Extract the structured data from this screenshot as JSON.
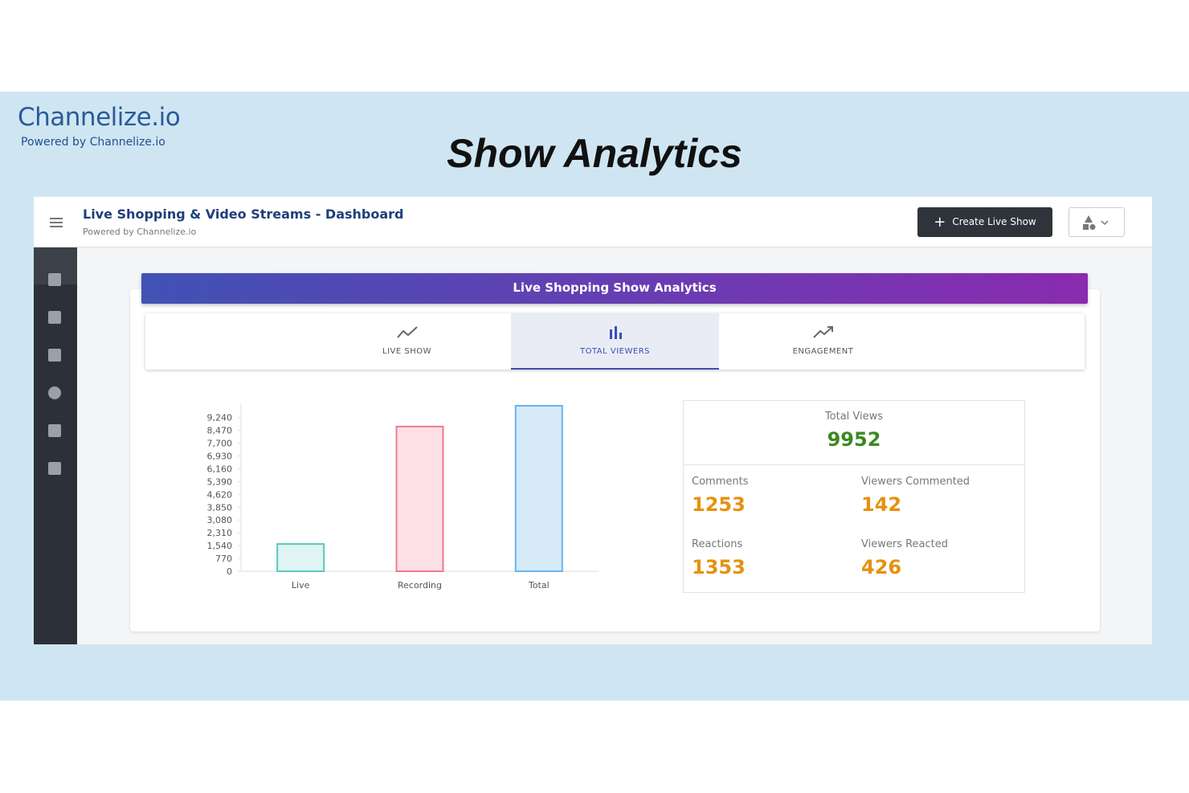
{
  "brand": {
    "name": "Channelize.io",
    "tagline": "Powered by Channelize.io"
  },
  "headline": "Show Analytics",
  "header": {
    "title": "Live Shopping & Video Streams - Dashboard",
    "subtitle": "Powered by Channelize.io",
    "button": "Create Live Show"
  },
  "panel": {
    "title": "Live Shopping Show Analytics",
    "tabs": [
      {
        "label": "LIVE SHOW",
        "active": false
      },
      {
        "label": "TOTAL VIEWERS",
        "active": true
      },
      {
        "label": "ENGAGEMENT",
        "active": false
      }
    ]
  },
  "chart_data": {
    "type": "bar",
    "categories": [
      "Live",
      "Recording",
      "Total"
    ],
    "values": [
      1640,
      8700,
      9952
    ],
    "series_colors": [
      {
        "fill": "#e0f5f3",
        "stroke": "#5cc8c0"
      },
      {
        "fill": "#fde0e6",
        "stroke": "#f07a93"
      },
      {
        "fill": "#d6eaf8",
        "stroke": "#6ab4ec"
      }
    ],
    "ylim": [
      0,
      9952
    ],
    "yticks": [
      0,
      770,
      {
        "value": 1540,
        "label": "1,540"
      },
      {
        "value": 2310,
        "label": "2,310"
      },
      {
        "value": 3080,
        "label": "3,080"
      },
      {
        "value": 3850,
        "label": "3,850"
      },
      {
        "value": 4620,
        "label": "4,620"
      },
      {
        "value": 5390,
        "label": "5,390"
      },
      {
        "value": 6160,
        "label": "6,160"
      },
      {
        "value": 6930,
        "label": "6,930"
      },
      {
        "value": 7700,
        "label": "7,700"
      },
      {
        "value": 8470,
        "label": "8,470"
      },
      {
        "value": 9240,
        "label": "9,240"
      }
    ],
    "grid": false
  },
  "stats": [
    {
      "label": "Total Views",
      "value": 9952
    },
    {
      "label": "Comments",
      "value": 1253
    },
    {
      "label": "Viewers Commented",
      "value": 142
    },
    {
      "label": "Reactions",
      "value": 1353
    },
    {
      "label": "Viewers Reacted",
      "value": 426
    }
  ]
}
